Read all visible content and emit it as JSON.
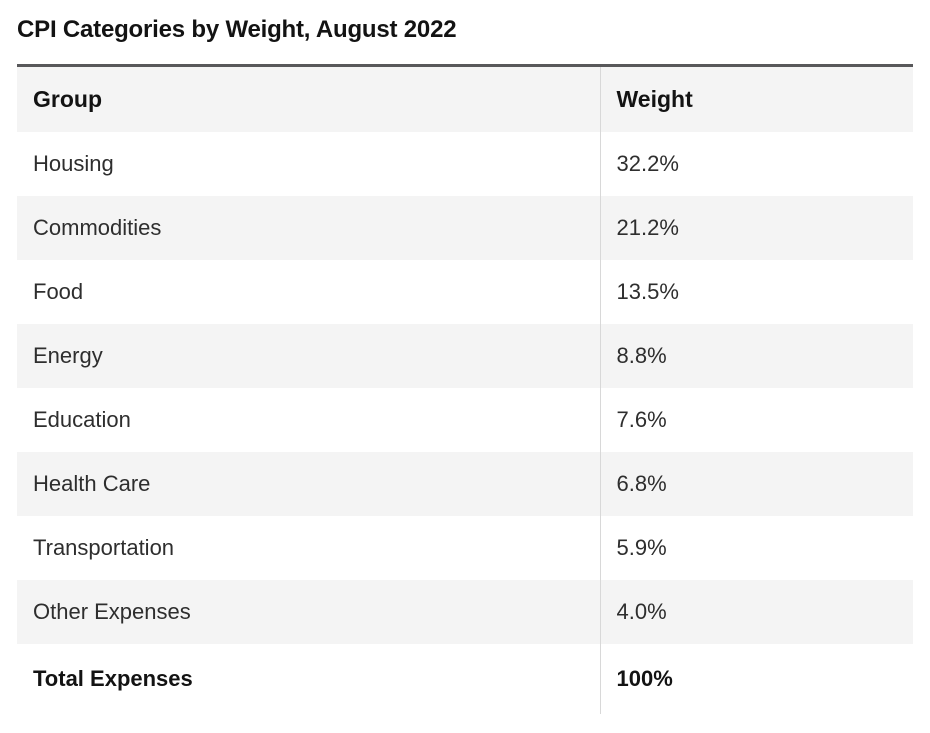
{
  "page": {
    "title": "CPI Categories by Weight, August 2022"
  },
  "table": {
    "columns": [
      {
        "label": "Group"
      },
      {
        "label": "Weight"
      }
    ],
    "rows": [
      {
        "group": "Housing",
        "weight": "32.2%"
      },
      {
        "group": "Commodities",
        "weight": "21.2%"
      },
      {
        "group": "Food",
        "weight": "13.5%"
      },
      {
        "group": "Energy",
        "weight": "8.8%"
      },
      {
        "group": "Education",
        "weight": "7.6%"
      },
      {
        "group": "Health Care",
        "weight": "6.8%"
      },
      {
        "group": "Transportation",
        "weight": "5.9%"
      },
      {
        "group": "Other Expenses",
        "weight": "4.0%"
      }
    ],
    "total_row": {
      "group": "Total Expenses",
      "weight": "100%"
    }
  },
  "chart_data": {
    "type": "table",
    "title": "CPI Categories by Weight, August 2022",
    "columns": [
      "Group",
      "Weight"
    ],
    "categories": [
      "Housing",
      "Commodities",
      "Food",
      "Energy",
      "Education",
      "Health Care",
      "Transportation",
      "Other Expenses"
    ],
    "values": [
      32.2,
      21.2,
      13.5,
      8.8,
      7.6,
      6.8,
      5.9,
      4.0
    ],
    "unit": "%",
    "total": {
      "label": "Total Expenses",
      "value": 100
    }
  },
  "colors": {
    "row_alt_background": "#f4f4f4",
    "top_border": "#58585a",
    "column_divider": "#d8d8d8",
    "body_text": "#2e2e2e",
    "heading_text": "#131313"
  }
}
